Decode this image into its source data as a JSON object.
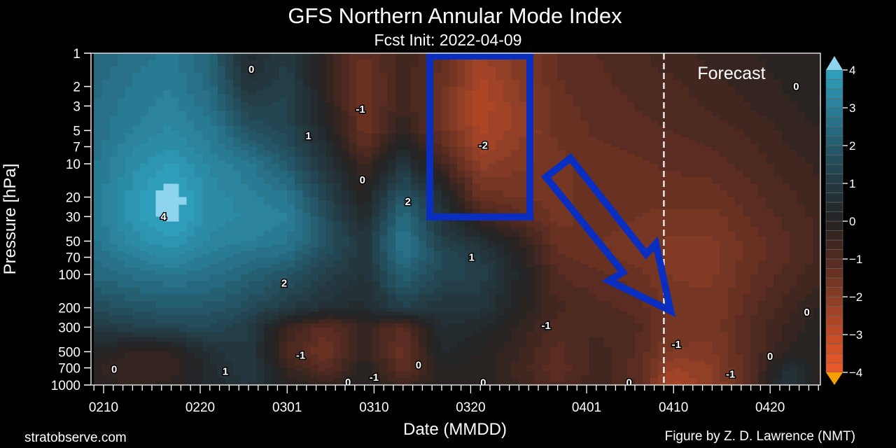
{
  "chart_data": {
    "type": "heatmap",
    "title": "GFS Northern Annular Mode Index",
    "subtitle": "Fcst Init: 2022-04-09",
    "xlabel": "Date (MMDD)",
    "ylabel": "Pressure [hPa]",
    "x_units": "days since 0210",
    "x_tick_labels": [
      {
        "label": "0210",
        "day": 0
      },
      {
        "label": "0220",
        "day": 10
      },
      {
        "label": "0301",
        "day": 19
      },
      {
        "label": "0310",
        "day": 28
      },
      {
        "label": "0320",
        "day": 38
      },
      {
        "label": "0401",
        "day": 50
      },
      {
        "label": "0410",
        "day": 59
      },
      {
        "label": "0420",
        "day": 69
      }
    ],
    "xlim": [
      -1.3,
      74.3
    ],
    "y_scale": "log",
    "ylim": [
      1000,
      1
    ],
    "y_tick_labels": [
      "1",
      "2",
      "3",
      "5",
      "7",
      "10",
      "20",
      "30",
      "50",
      "70",
      "100",
      "200",
      "300",
      "500",
      "700",
      "1000"
    ],
    "y_ticks": [
      1,
      2,
      3,
      5,
      7,
      10,
      20,
      30,
      50,
      70,
      100,
      200,
      300,
      500,
      700,
      1000
    ],
    "x": [
      -1,
      3,
      7,
      11,
      15,
      19,
      23,
      27,
      31,
      35,
      39,
      43,
      47,
      51,
      55,
      59,
      63,
      67,
      71,
      75
    ],
    "pressure": [
      1,
      2,
      3,
      5,
      7,
      10,
      20,
      30,
      50,
      70,
      100,
      200,
      300,
      500,
      700,
      1000
    ],
    "values": [
      [
        2.3,
        2.6,
        2.8,
        2.2,
        0.3,
        1.0,
        -0.3,
        -1.3,
        -0.5,
        -1.2,
        -2.3,
        -1.8,
        -1.2,
        -1.0,
        -0.8,
        -0.6,
        -0.4,
        -0.3,
        -0.1,
        0.0
      ],
      [
        2.4,
        2.8,
        3.0,
        2.4,
        0.8,
        1.2,
        -0.2,
        -1.5,
        -0.6,
        -1.4,
        -2.6,
        -2.0,
        -1.3,
        -1.1,
        -0.9,
        -0.8,
        -0.6,
        -0.4,
        -0.2,
        0.0
      ],
      [
        2.5,
        2.9,
        3.1,
        2.6,
        1.2,
        1.3,
        -0.1,
        -1.5,
        -0.5,
        -1.5,
        -2.7,
        -2.1,
        -1.3,
        -1.2,
        -1.0,
        -0.9,
        -0.7,
        -0.5,
        -0.3,
        -0.1
      ],
      [
        2.6,
        3.0,
        3.3,
        2.9,
        1.8,
        1.4,
        0.2,
        -1.4,
        -0.2,
        -1.4,
        -2.6,
        -2.1,
        -1.4,
        -1.2,
        -1.1,
        -1.0,
        -0.9,
        -0.7,
        -0.4,
        -0.2
      ],
      [
        2.6,
        3.2,
        3.5,
        3.0,
        2.3,
        1.6,
        0.5,
        -1.2,
        0.3,
        -1.1,
        -2.4,
        -2.0,
        -1.5,
        -1.3,
        -1.2,
        -1.1,
        -1.0,
        -0.8,
        -0.5,
        -0.3
      ],
      [
        2.7,
        3.4,
        3.8,
        3.2,
        2.8,
        2.0,
        0.8,
        -0.6,
        0.8,
        -0.6,
        -2.1,
        -1.8,
        -1.6,
        -1.3,
        -1.3,
        -1.2,
        -1.1,
        -0.9,
        -0.6,
        -0.4
      ],
      [
        2.8,
        3.6,
        4.3,
        3.4,
        3.1,
        2.8,
        1.3,
        0.0,
        2.0,
        0.5,
        -1.4,
        -1.5,
        -1.6,
        -1.3,
        -1.4,
        -1.4,
        -1.4,
        -1.1,
        -0.8,
        -0.5
      ],
      [
        2.8,
        3.6,
        4.2,
        3.4,
        3.2,
        3.0,
        1.6,
        0.3,
        2.5,
        0.8,
        -0.6,
        -1.1,
        -1.6,
        -1.4,
        -1.5,
        -1.6,
        -1.6,
        -1.2,
        -0.9,
        -0.6
      ],
      [
        2.7,
        3.4,
        3.7,
        3.2,
        3.0,
        2.8,
        1.8,
        0.8,
        2.8,
        1.2,
        0.6,
        -0.2,
        -1.4,
        -1.5,
        -1.6,
        -1.8,
        -1.8,
        -1.4,
        -1.0,
        -0.6
      ],
      [
        2.5,
        3.0,
        3.3,
        2.9,
        2.6,
        2.4,
        1.5,
        0.8,
        2.6,
        1.5,
        1.0,
        0.0,
        -1.2,
        -1.4,
        -1.6,
        -1.8,
        -1.8,
        -1.4,
        -1.0,
        -0.6
      ],
      [
        2.3,
        2.6,
        2.8,
        2.6,
        2.2,
        1.8,
        1.2,
        0.7,
        2.2,
        1.4,
        1.2,
        0.2,
        -1.0,
        -1.2,
        -1.4,
        -1.8,
        -1.8,
        -1.3,
        -0.9,
        -0.5
      ],
      [
        1.6,
        1.8,
        2.0,
        1.9,
        1.6,
        1.0,
        0.6,
        0.4,
        1.2,
        0.8,
        0.8,
        0.0,
        -0.7,
        -0.9,
        -1.1,
        -1.6,
        -1.7,
        -1.1,
        -0.6,
        -0.1
      ],
      [
        1.0,
        1.2,
        1.4,
        1.5,
        1.0,
        -0.5,
        -1.2,
        -0.4,
        -1.1,
        0.5,
        0.3,
        -0.3,
        -0.9,
        -0.8,
        -0.9,
        -1.6,
        -1.7,
        -1.0,
        -0.4,
        0.0
      ],
      [
        0.1,
        -0.3,
        -0.3,
        0.6,
        1.0,
        -0.8,
        -1.5,
        -0.3,
        -1.4,
        0.3,
        0.0,
        -0.5,
        -1.1,
        -0.6,
        -1.0,
        -1.8,
        -1.8,
        -1.0,
        -0.2,
        -0.1
      ],
      [
        -0.2,
        -0.5,
        -0.4,
        0.4,
        1.0,
        -0.4,
        -1.2,
        0.0,
        -1.3,
        0.0,
        -0.1,
        -0.6,
        -1.2,
        -0.6,
        -1.1,
        -2.3,
        -2.0,
        -1.0,
        0.6,
        -0.3
      ],
      [
        -0.1,
        -0.3,
        -0.2,
        0.3,
        0.8,
        0.0,
        -0.3,
        0.0,
        -0.5,
        -0.1,
        -0.1,
        -0.5,
        -1.0,
        -0.6,
        -1.0,
        -2.6,
        -2.1,
        -1.0,
        0.9,
        -0.5
      ]
    ],
    "contour_labels": [
      {
        "text": "0",
        "day": 15.3,
        "p": 1.4
      },
      {
        "text": "-1",
        "day": 26.6,
        "p": 3.2
      },
      {
        "text": "1",
        "day": 21.2,
        "p": 5.6
      },
      {
        "text": "0",
        "day": 26.8,
        "p": 14
      },
      {
        "text": "2",
        "day": 31.5,
        "p": 22
      },
      {
        "text": "4",
        "day": 6.2,
        "p": 30
      },
      {
        "text": "2",
        "day": 18.7,
        "p": 120
      },
      {
        "text": "-1",
        "day": 20.4,
        "p": 540
      },
      {
        "text": "0",
        "day": 1.1,
        "p": 720
      },
      {
        "text": "1",
        "day": 12.6,
        "p": 750
      },
      {
        "text": "0",
        "day": 32.6,
        "p": 660
      },
      {
        "text": "-1",
        "day": 28,
        "p": 850
      },
      {
        "text": "0",
        "day": 25.3,
        "p": 940
      },
      {
        "text": "-2",
        "day": 39.3,
        "p": 6.8
      },
      {
        "text": "1",
        "day": 38.1,
        "p": 70
      },
      {
        "text": "-1",
        "day": 45.8,
        "p": 290
      },
      {
        "text": "0",
        "day": 39.3,
        "p": 950
      },
      {
        "text": "0",
        "day": 54.4,
        "p": 950
      },
      {
        "text": "-1",
        "day": 59.3,
        "p": 430
      },
      {
        "text": "0",
        "day": 71.7,
        "p": 2
      },
      {
        "text": "0",
        "day": 72.8,
        "p": 220
      },
      {
        "text": "0",
        "day": 69,
        "p": 550
      },
      {
        "text": "-1",
        "day": 64.9,
        "p": 800
      }
    ],
    "forecast_line_day": 58,
    "forecast_label": "Forecast",
    "colorbar": {
      "min": -4,
      "max": 4,
      "step": 0.25,
      "tick_labels": [
        "4",
        "3",
        "2",
        "1",
        "0",
        "−1",
        "−2",
        "−3",
        "−4"
      ],
      "ticks": [
        4,
        3,
        2,
        1,
        0,
        -1,
        -2,
        -3,
        -4
      ]
    },
    "colors": {
      "neg4": "#ee5a2c",
      "neg3": "#c44c26",
      "neg2": "#8a3d26",
      "neg1": "#542a20",
      "zero": "#232222",
      "pos1": "#243a42",
      "pos2": "#245a6c",
      "pos3": "#2a7f98",
      "pos4": "#30a2c0",
      "over": "#8fd4ee",
      "under": "#f5a000",
      "annotation": "#0a2fc0"
    }
  },
  "footer": {
    "left": "stratobserve.com",
    "right": "Figure by Z. D. Lawrence (NMT)"
  }
}
